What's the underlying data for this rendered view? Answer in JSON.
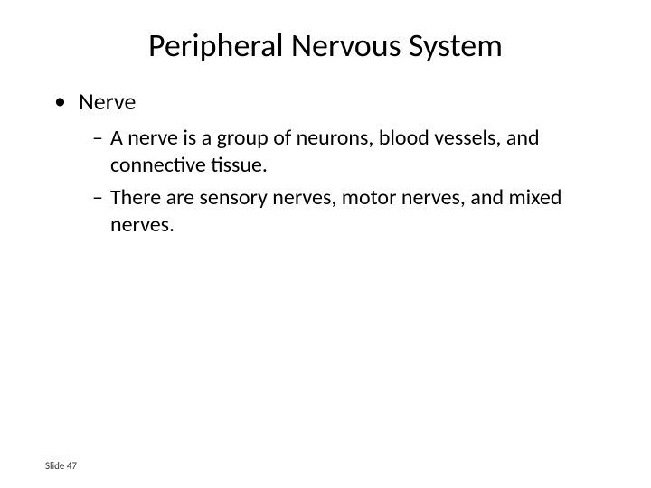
{
  "slide": {
    "title": "Peripheral Nervous System",
    "bullet_l1": "Nerve",
    "bullet_l2_1": "A nerve is a group of neurons, blood vessels, and connective tissue.",
    "bullet_l2_2": "There are sensory nerves, motor nerves, and mixed nerves.",
    "footer": "Slide 47",
    "markers": {
      "l1": "•",
      "l2": "–"
    },
    "styling": {
      "background_color": "#ffffff",
      "text_color": "#000000",
      "title_fontsize": 36,
      "l1_fontsize": 26,
      "l2_fontsize": 24,
      "footer_fontsize": 11,
      "font_family": "Calibri"
    }
  }
}
